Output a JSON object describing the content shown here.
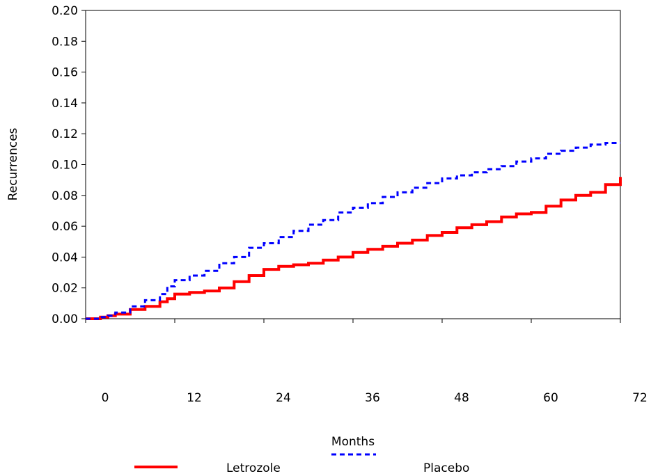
{
  "chart_data": {
    "type": "line",
    "title": "",
    "xlabel": "Months",
    "ylabel": "Recurrences",
    "xlim": [
      0,
      72
    ],
    "ylim": [
      0,
      0.2
    ],
    "x_ticks": [
      "0",
      "12",
      "24",
      "36",
      "48",
      "60",
      "72"
    ],
    "y_ticks": [
      "0.00",
      "0.02",
      "0.04",
      "0.06",
      "0.08",
      "0.10",
      "0.12",
      "0.14",
      "0.16",
      "0.18",
      "0.20"
    ],
    "grid": false,
    "legend_position": "bottom",
    "series": [
      {
        "name": "Letrozole",
        "color": "#ff0000",
        "style": "solid",
        "x": [
          0,
          2,
          3,
          4,
          6,
          8,
          10,
          11,
          12,
          14,
          16,
          18,
          20,
          22,
          24,
          26,
          28,
          30,
          32,
          34,
          36,
          38,
          40,
          42,
          44,
          46,
          48,
          50,
          52,
          54,
          56,
          58,
          60,
          62,
          64,
          66,
          68,
          70,
          72
        ],
        "y": [
          0.0,
          0.001,
          0.002,
          0.003,
          0.006,
          0.008,
          0.011,
          0.013,
          0.016,
          0.017,
          0.018,
          0.02,
          0.024,
          0.028,
          0.032,
          0.034,
          0.035,
          0.036,
          0.038,
          0.04,
          0.043,
          0.045,
          0.047,
          0.049,
          0.051,
          0.054,
          0.056,
          0.059,
          0.061,
          0.063,
          0.066,
          0.068,
          0.069,
          0.073,
          0.077,
          0.08,
          0.082,
          0.087,
          0.092
        ]
      },
      {
        "name": "Placebo",
        "color": "#0000ff",
        "style": "dashed",
        "x": [
          0,
          2,
          3,
          4,
          6,
          8,
          10,
          11,
          12,
          14,
          16,
          18,
          20,
          22,
          24,
          26,
          28,
          30,
          32,
          34,
          36,
          38,
          40,
          42,
          44,
          46,
          48,
          50,
          52,
          54,
          56,
          58,
          60,
          62,
          64,
          66,
          68,
          70,
          72
        ],
        "y": [
          0.0,
          0.001,
          0.002,
          0.004,
          0.008,
          0.012,
          0.016,
          0.021,
          0.025,
          0.028,
          0.031,
          0.036,
          0.04,
          0.046,
          0.049,
          0.053,
          0.057,
          0.061,
          0.064,
          0.069,
          0.072,
          0.075,
          0.079,
          0.082,
          0.085,
          0.088,
          0.091,
          0.093,
          0.095,
          0.097,
          0.099,
          0.102,
          0.104,
          0.107,
          0.109,
          0.111,
          0.113,
          0.114,
          0.114
        ]
      }
    ]
  }
}
